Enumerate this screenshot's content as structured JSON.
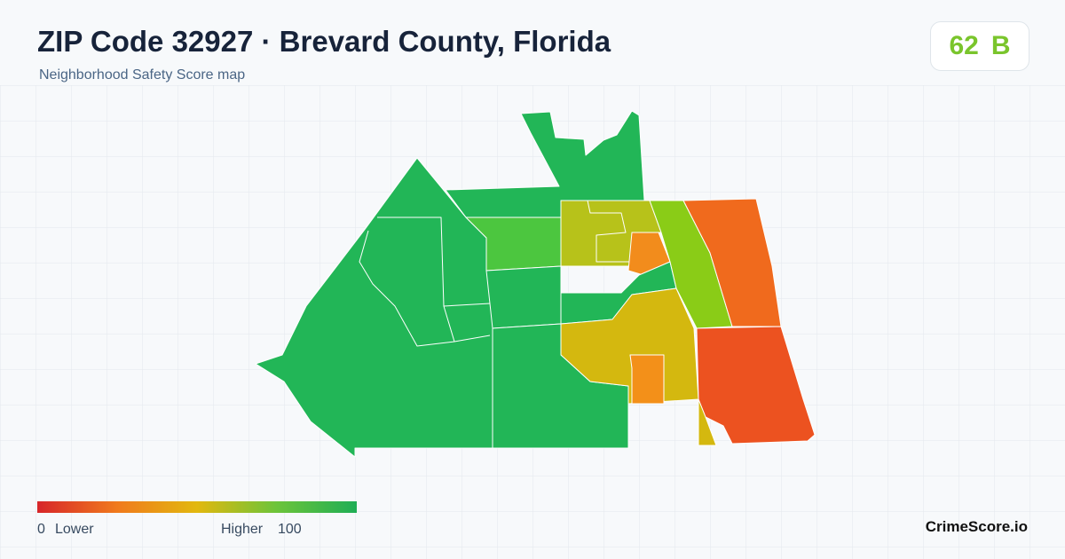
{
  "header": {
    "title": "ZIP Code 32927 · Brevard County, Florida",
    "subtitle": "Neighborhood Safety Score map"
  },
  "score": {
    "value": 62,
    "grade": "B"
  },
  "legend": {
    "min": 0,
    "min_label": "Lower",
    "max_label": "Higher",
    "max": 100
  },
  "brand": "CrimeScore.io"
}
